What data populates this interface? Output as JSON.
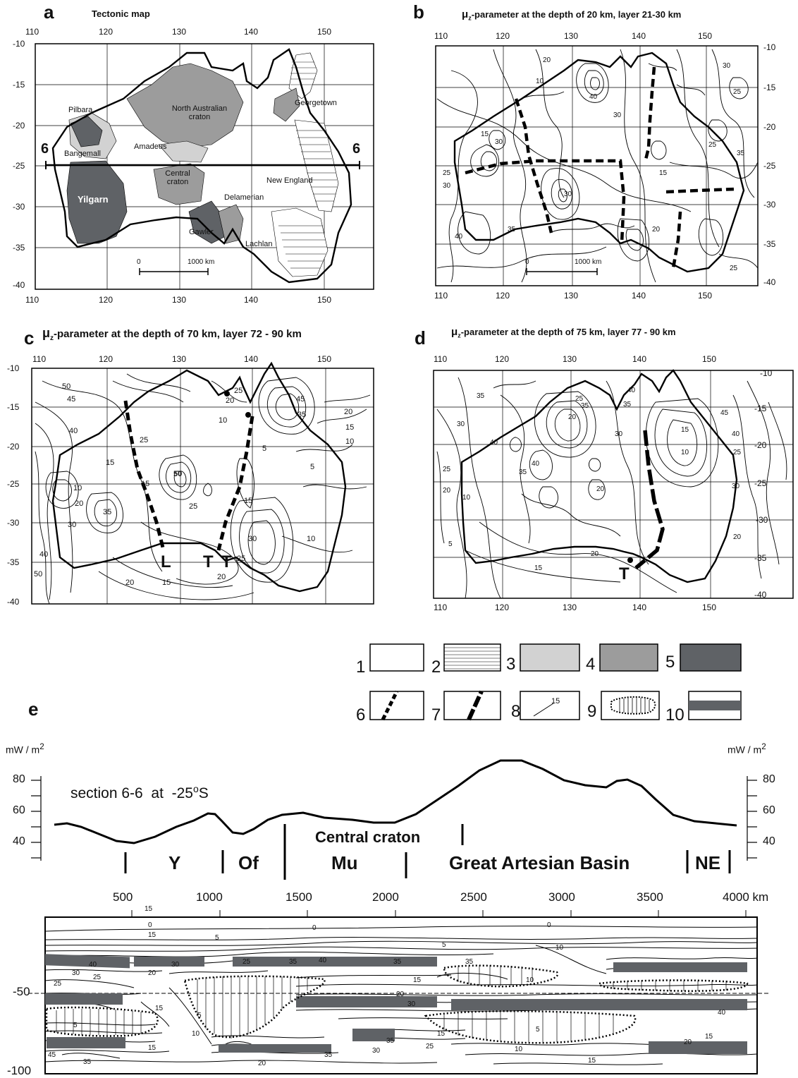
{
  "panels": {
    "a": {
      "letter": "a",
      "title": "Tectonic map"
    },
    "b": {
      "letter": "b",
      "title": "-parameter at the depth of 20 km, layer 21-30 km"
    },
    "c": {
      "letter": "c",
      "title": "-parameter at the depth of 70 km, layer 72 - 90 km"
    },
    "d": {
      "letter": "d",
      "title": "-parameter at the depth of 75 km, layer 77 - 90 km"
    },
    "e": {
      "letter": "e"
    }
  },
  "mu_symbol": "μ",
  "mu_subscript": "z",
  "lon_ticks": [
    "110",
    "120",
    "130",
    "140",
    "150"
  ],
  "lat_ticks": [
    "-10",
    "-15",
    "-20",
    "-25",
    "-30",
    "-35",
    "-40"
  ],
  "scale_bar": {
    "start": "0",
    "end": "1000 km"
  },
  "section_marker": "6",
  "tectonic_labels": [
    "Pilbara",
    "North Australian craton",
    "Georgetown",
    "Bangemall",
    "Amadeus",
    "Central craton",
    "Yilgarn",
    "Delamerian",
    "New England",
    "Gawler",
    "Lachlan"
  ],
  "contour_labels_b": [
    "10",
    "20",
    "30",
    "40",
    "15",
    "25",
    "35"
  ],
  "contour_labels_c": [
    "50",
    "45",
    "40",
    "25",
    "20",
    "15",
    "10",
    "5",
    "30",
    "35"
  ],
  "contour_labels_d": [
    "35",
    "30",
    "25",
    "20",
    "40",
    "45",
    "15",
    "10",
    "5"
  ],
  "suture_labels": {
    "L": "L",
    "T": "T"
  },
  "legend": {
    "items": [
      "1",
      "2",
      "3",
      "4",
      "5",
      "6",
      "7",
      "8",
      "9",
      "10"
    ],
    "contour_value": "15",
    "colors": {
      "light_gray": "#d2d2d2",
      "mid_gray": "#9c9c9c",
      "dark_gray": "#5f6266"
    }
  },
  "heatflow": {
    "unit_left": "mW / m",
    "unit_right": "mW / m",
    "unit_superscript": "2",
    "y_ticks": [
      "80",
      "60",
      "40"
    ],
    "section_title": "section 6-6  at  -25",
    "section_degree": "o",
    "section_suffix": "S",
    "central_craton": "Central craton",
    "domains": [
      "Y",
      "Of",
      "Mu",
      "Great Artesian Basin",
      "NE"
    ]
  },
  "section": {
    "x_ticks": [
      "500",
      "1000",
      "1500",
      "2000",
      "2500",
      "3000",
      "3500",
      "4000 km"
    ],
    "depth_labels": [
      "-50",
      "-100"
    ],
    "contour_labels": [
      "15",
      "0",
      "0",
      "0",
      "15",
      "5",
      "5",
      "10",
      "40",
      "30",
      "25",
      "35",
      "40",
      "35",
      "25",
      "35",
      "30",
      "25",
      "20",
      "15",
      "10",
      "5",
      "20",
      "30",
      "40",
      "15",
      "10",
      "15",
      "25",
      "35",
      "30",
      "20",
      "15",
      "10",
      "5",
      "5",
      "35",
      "15",
      "45",
      "35",
      "20",
      "15"
    ]
  }
}
